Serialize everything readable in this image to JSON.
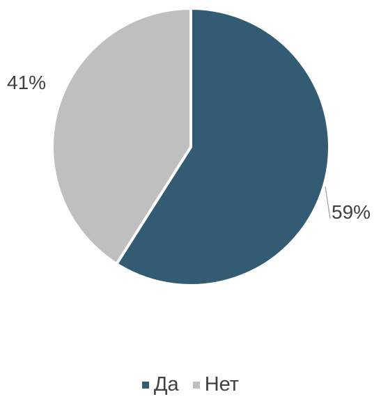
{
  "chart_data": {
    "type": "pie",
    "categories": [
      "Да",
      "Нет"
    ],
    "values": [
      59,
      41
    ],
    "labels": [
      "59%",
      "41%"
    ],
    "colors": [
      "#335b74",
      "#bfbfbf"
    ],
    "legend_position": "bottom",
    "start_angle_deg": 0,
    "direction": "clockwise"
  }
}
